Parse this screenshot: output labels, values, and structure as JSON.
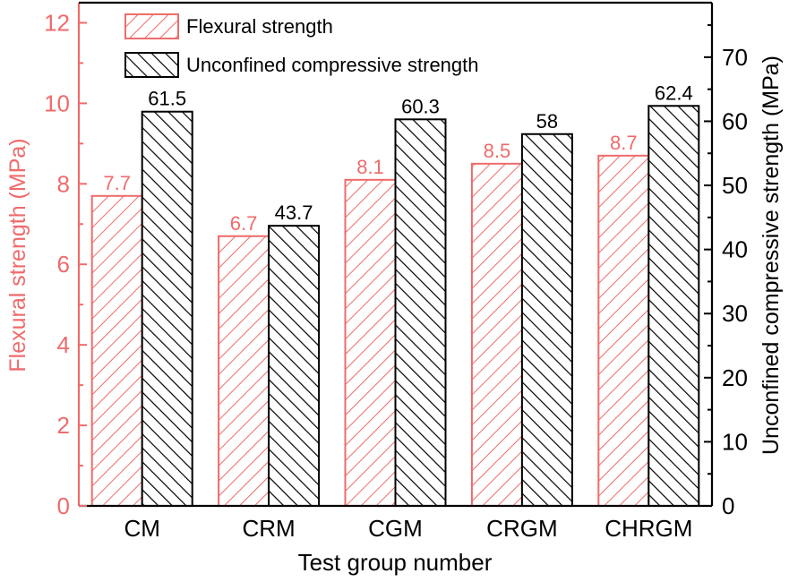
{
  "chart_data": {
    "type": "bar",
    "title": "",
    "xlabel": "Test group number",
    "ylabel": "Flexural strength (MPa)",
    "y2label": "Unconfined compressive strength (MPa)",
    "categories": [
      "CM",
      "CRM",
      "CGM",
      "CRGM",
      "CHRGM"
    ],
    "series": [
      {
        "name": "Flexural strength",
        "axis": "left",
        "values": [
          7.7,
          6.7,
          8.1,
          8.5,
          8.7
        ],
        "labels": [
          "7.7",
          "6.7",
          "8.1",
          "8.5",
          "8.7"
        ],
        "color": "#ef6b6b",
        "hatch": "forward-diagonal"
      },
      {
        "name": "Unconfined compressive strength",
        "axis": "right",
        "values": [
          61.5,
          43.7,
          60.3,
          58,
          62.4
        ],
        "labels": [
          "61.5",
          "43.7",
          "60.3",
          "58",
          "62.4"
        ],
        "color": "#000000",
        "hatch": "back-diagonal"
      }
    ],
    "ylim": [
      0,
      12.5
    ],
    "y2lim": [
      0,
      78.5
    ],
    "yticks": [
      0,
      2,
      4,
      6,
      8,
      10,
      12
    ],
    "y2ticks": [
      0,
      10,
      20,
      30,
      40,
      50,
      60,
      70
    ],
    "legend_position": "top-left",
    "grid": false
  }
}
